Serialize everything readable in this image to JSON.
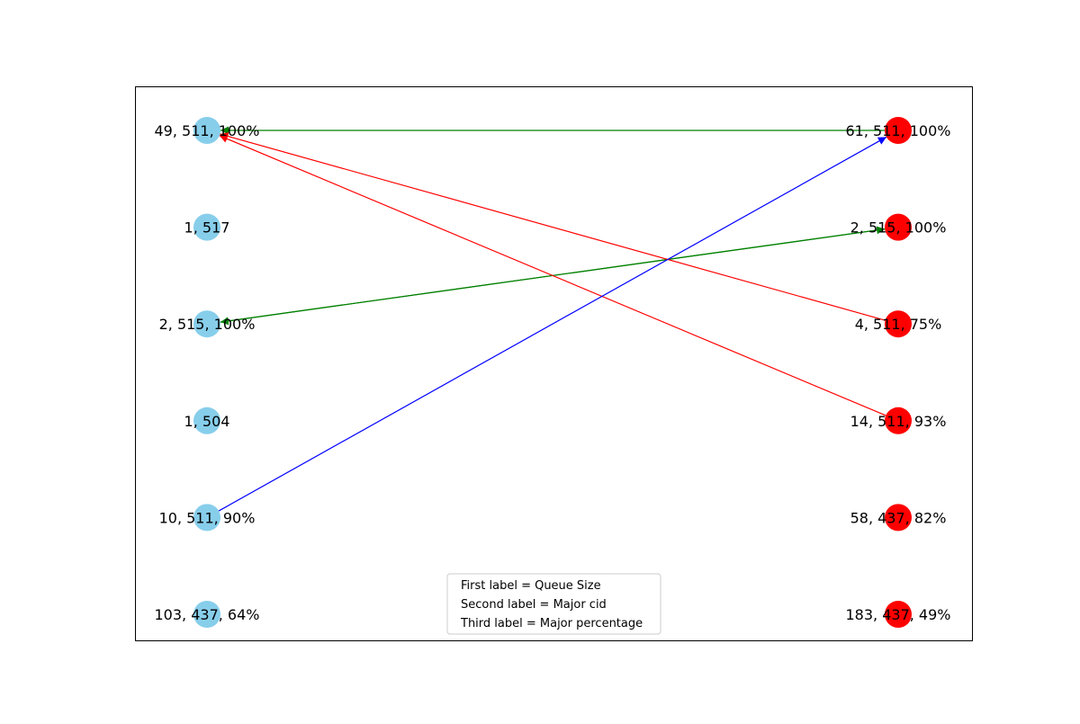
{
  "colors": {
    "left_node": "#87CEEB",
    "right_node": "#FF0000",
    "edge_green": "#008000",
    "edge_red": "#FF0000",
    "edge_blue": "#0000FF",
    "frame": "#000000"
  },
  "left_nodes": [
    {
      "id": "L0",
      "label": "49, 511, 100%"
    },
    {
      "id": "L1",
      "label": "1, 517"
    },
    {
      "id": "L2",
      "label": "2, 515, 100%"
    },
    {
      "id": "L3",
      "label": "1, 504"
    },
    {
      "id": "L4",
      "label": "10, 511, 90%"
    },
    {
      "id": "L5",
      "label": "103, 437, 64%"
    }
  ],
  "right_nodes": [
    {
      "id": "R0",
      "label": "61, 511, 100%"
    },
    {
      "id": "R1",
      "label": "2, 515, 100%"
    },
    {
      "id": "R2",
      "label": "4, 511, 75%"
    },
    {
      "id": "R3",
      "label": "14, 511, 93%"
    },
    {
      "id": "R4",
      "label": "58, 437, 82%"
    },
    {
      "id": "R5",
      "label": "183, 437, 49%"
    }
  ],
  "edges": [
    {
      "from": "R0",
      "to": "L0",
      "color": "green"
    },
    {
      "from": "L2",
      "to": "R1",
      "color": "green"
    },
    {
      "from": "R1",
      "to": "L2",
      "color": "green"
    },
    {
      "from": "R2",
      "to": "L0",
      "color": "red"
    },
    {
      "from": "R3",
      "to": "L0",
      "color": "red"
    },
    {
      "from": "L4",
      "to": "R0",
      "color": "blue"
    }
  ],
  "legend": {
    "lines": [
      "First label = Queue Size",
      "Second label = Major cid",
      "Third label = Major percentage"
    ]
  }
}
